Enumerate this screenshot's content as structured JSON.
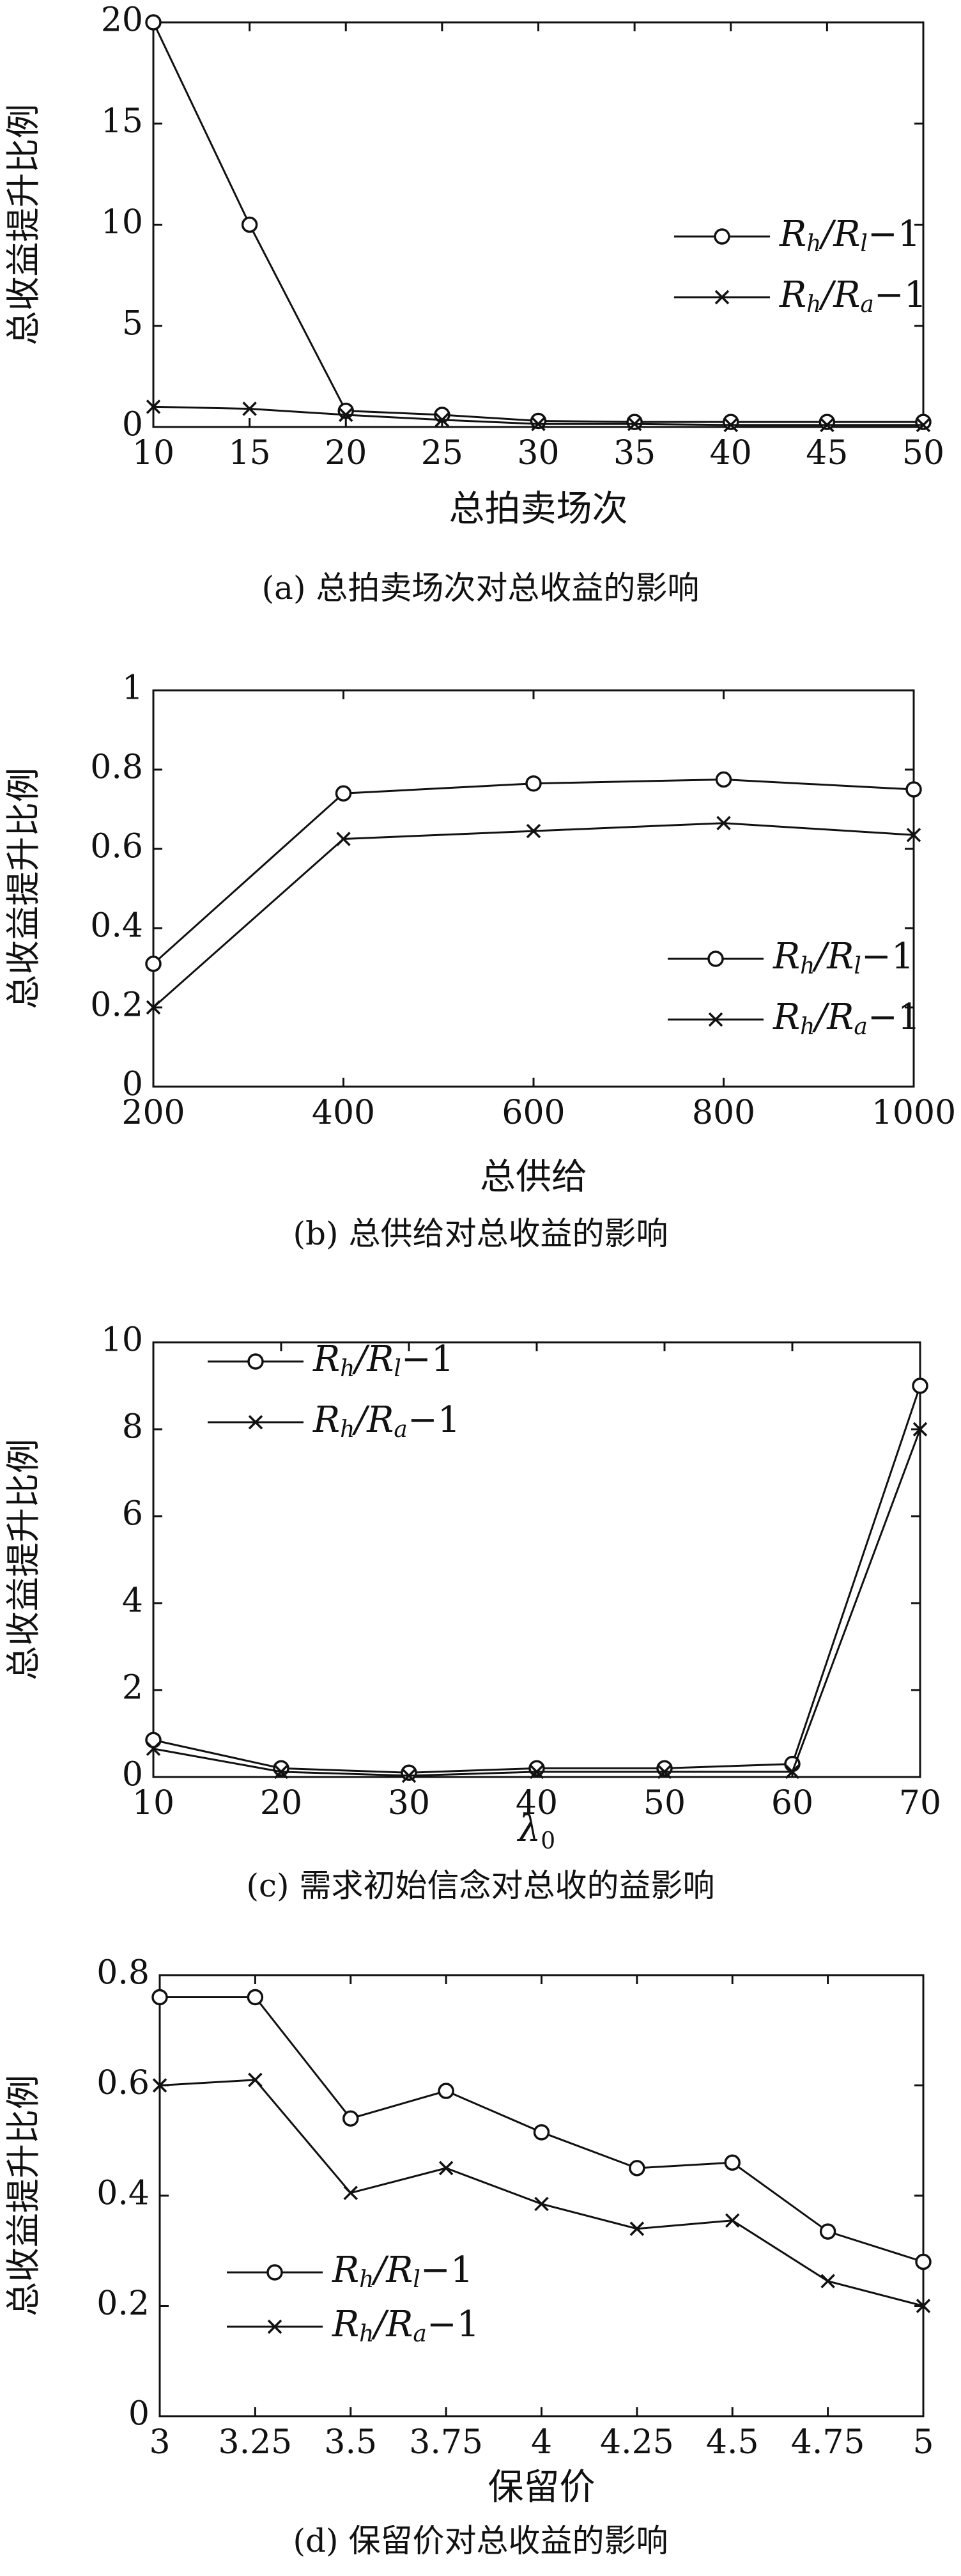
{
  "chart_data": [
    {
      "type": "line",
      "caption": "(a) 总拍卖场次对总收益的影响",
      "xlabel": "总拍卖场次",
      "ylabel": "总收益提升比例",
      "x": [
        10,
        15,
        20,
        25,
        30,
        35,
        40,
        45,
        50
      ],
      "x_ticks": [
        "10",
        "15",
        "20",
        "25",
        "30",
        "35",
        "40",
        "45",
        "50"
      ],
      "xlim": [
        10,
        50
      ],
      "ylim": [
        0,
        20
      ],
      "y_ticks": [
        "0",
        "5",
        "10",
        "15",
        "20"
      ],
      "legend_position": "right",
      "series": [
        {
          "name": "R_h/R_l−1",
          "name_parts": {
            "a": "R",
            "as": "h",
            "b": "R",
            "bs": "l",
            "tail": "−1"
          },
          "marker": "circle",
          "values": [
            20,
            10,
            0.8,
            0.6,
            0.3,
            0.25,
            0.25,
            0.25,
            0.25
          ]
        },
        {
          "name": "R_h/R_a−1",
          "name_parts": {
            "a": "R",
            "as": "h",
            "b": "R",
            "bs": "a",
            "tail": "−1"
          },
          "marker": "cross",
          "values": [
            1.0,
            0.9,
            0.6,
            0.35,
            0.15,
            0.15,
            0.1,
            0.1,
            0.1
          ]
        }
      ]
    },
    {
      "type": "line",
      "caption": "(b) 总供给对总收益的影响",
      "xlabel": "总供给",
      "ylabel": "总收益提升比例",
      "x": [
        200,
        400,
        600,
        800,
        1000
      ],
      "x_ticks": [
        "200",
        "400",
        "600",
        "800",
        "1000"
      ],
      "xlim": [
        200,
        1000
      ],
      "ylim": [
        0,
        1
      ],
      "y_ticks": [
        "0",
        "0.2",
        "0.4",
        "0.6",
        "0.8",
        "1"
      ],
      "legend_position": "lower-right",
      "series": [
        {
          "name": "R_h/R_l−1",
          "name_parts": {
            "a": "R",
            "as": "h",
            "b": "R",
            "bs": "l",
            "tail": "−1"
          },
          "marker": "circle",
          "values": [
            0.31,
            0.74,
            0.765,
            0.775,
            0.75
          ]
        },
        {
          "name": "R_h/R_a−1",
          "name_parts": {
            "a": "R",
            "as": "h",
            "b": "R",
            "bs": "a",
            "tail": "−1"
          },
          "marker": "cross",
          "values": [
            0.2,
            0.625,
            0.645,
            0.665,
            0.635
          ]
        }
      ]
    },
    {
      "type": "line",
      "caption": "(c) 需求初始信念对总收的益影响",
      "xlabel": "λ",
      "xlabel_sub": "0",
      "ylabel": "总收益提升比例",
      "x": [
        10,
        20,
        30,
        40,
        50,
        60,
        70
      ],
      "x_ticks": [
        "10",
        "20",
        "30",
        "40",
        "50",
        "60",
        "70"
      ],
      "xlim": [
        10,
        70
      ],
      "ylim": [
        0,
        10
      ],
      "y_ticks": [
        "0",
        "2",
        "4",
        "6",
        "8",
        "10"
      ],
      "legend_position": "top-left",
      "series": [
        {
          "name": "R_h/R_l−1",
          "name_parts": {
            "a": "R",
            "as": "h",
            "b": "R",
            "bs": "l",
            "tail": "−1"
          },
          "marker": "circle",
          "values": [
            0.85,
            0.2,
            0.1,
            0.2,
            0.2,
            0.3,
            9.0
          ]
        },
        {
          "name": "R_h/R_a−1",
          "name_parts": {
            "a": "R",
            "as": "h",
            "b": "R",
            "bs": "a",
            "tail": "−1"
          },
          "marker": "cross",
          "values": [
            0.65,
            0.12,
            0.03,
            0.12,
            0.12,
            0.12,
            8.0
          ]
        }
      ]
    },
    {
      "type": "line",
      "caption": "(d) 保留价对总收益的影响",
      "xlabel": "保留价",
      "ylabel": "总收益提升比例",
      "x": [
        3,
        3.25,
        3.5,
        3.75,
        4,
        4.25,
        4.5,
        4.75,
        5
      ],
      "x_ticks": [
        "3",
        "3.25",
        "3.5",
        "3.75",
        "4",
        "4.25",
        "4.5",
        "4.75",
        "5"
      ],
      "xlim": [
        3,
        5
      ],
      "ylim": [
        0,
        0.8
      ],
      "y_ticks": [
        "0",
        "0.2",
        "0.4",
        "0.6",
        "0.8"
      ],
      "legend_position": "lower-left",
      "series": [
        {
          "name": "R_h/R_l−1",
          "name_parts": {
            "a": "R",
            "as": "h",
            "b": "R",
            "bs": "l",
            "tail": "−1"
          },
          "marker": "circle",
          "values": [
            0.76,
            0.76,
            0.54,
            0.59,
            0.515,
            0.45,
            0.46,
            0.335,
            0.28
          ]
        },
        {
          "name": "R_h/R_a−1",
          "name_parts": {
            "a": "R",
            "as": "h",
            "b": "R",
            "bs": "a",
            "tail": "−1"
          },
          "marker": "cross",
          "values": [
            0.6,
            0.61,
            0.405,
            0.45,
            0.385,
            0.34,
            0.355,
            0.245,
            0.2
          ]
        }
      ]
    }
  ]
}
